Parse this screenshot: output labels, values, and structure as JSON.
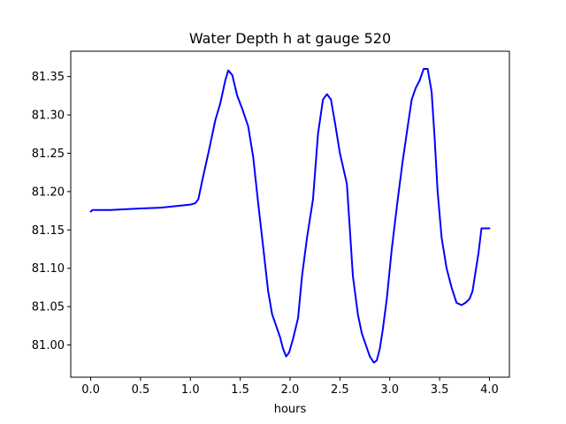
{
  "chart_data": {
    "type": "line",
    "title": "Water Depth h at gauge 520",
    "xlabel": "hours",
    "ylabel": "",
    "xlim": [
      -0.2,
      4.2
    ],
    "ylim": [
      80.958,
      81.383
    ],
    "grid": false,
    "x_ticks": [
      0.0,
      0.5,
      1.0,
      1.5,
      2.0,
      2.5,
      3.0,
      3.5,
      4.0
    ],
    "x_tick_labels": [
      "0.0",
      "0.5",
      "1.0",
      "1.5",
      "2.0",
      "2.5",
      "3.0",
      "3.5",
      "4.0"
    ],
    "y_ticks": [
      81.0,
      81.05,
      81.1,
      81.15,
      81.2,
      81.25,
      81.3,
      81.35
    ],
    "y_tick_labels": [
      "81.00",
      "81.05",
      "81.10",
      "81.15",
      "81.20",
      "81.25",
      "81.30",
      "81.35"
    ],
    "series": [
      {
        "color": "#0000ff",
        "x": [
          0.0,
          0.02,
          0.2,
          0.5,
          0.7,
          0.85,
          1.0,
          1.05,
          1.08,
          1.12,
          1.18,
          1.25,
          1.3,
          1.35,
          1.38,
          1.42,
          1.47,
          1.52,
          1.58,
          1.63,
          1.68,
          1.73,
          1.78,
          1.82,
          1.86,
          1.9,
          1.93,
          1.96,
          1.99,
          2.03,
          2.08,
          2.12,
          2.17,
          2.23,
          2.28,
          2.33,
          2.37,
          2.41,
          2.45,
          2.5,
          2.57,
          2.6,
          2.63,
          2.68,
          2.72,
          2.76,
          2.8,
          2.84,
          2.87,
          2.9,
          2.93,
          2.97,
          3.02,
          3.08,
          3.13,
          3.18,
          3.22,
          3.26,
          3.3,
          3.34,
          3.38,
          3.42,
          3.45,
          3.48,
          3.52,
          3.57,
          3.62,
          3.67,
          3.72,
          3.76,
          3.8,
          3.83,
          3.86,
          3.89,
          3.92,
          3.95,
          3.98,
          4.0
        ],
        "y": [
          81.174,
          81.176,
          81.176,
          81.178,
          81.179,
          81.181,
          81.183,
          81.185,
          81.19,
          81.215,
          81.25,
          81.293,
          81.315,
          81.345,
          81.358,
          81.352,
          81.325,
          81.308,
          81.285,
          81.245,
          81.185,
          81.128,
          81.07,
          81.04,
          81.025,
          81.01,
          80.995,
          80.985,
          80.99,
          81.008,
          81.035,
          81.09,
          81.14,
          81.19,
          81.275,
          81.32,
          81.327,
          81.32,
          81.29,
          81.25,
          81.21,
          81.15,
          81.09,
          81.04,
          81.015,
          81.0,
          80.985,
          80.977,
          80.98,
          80.995,
          81.02,
          81.06,
          81.125,
          81.19,
          81.24,
          81.285,
          81.32,
          81.335,
          81.345,
          81.36,
          81.36,
          81.33,
          81.27,
          81.2,
          81.14,
          81.1,
          81.075,
          81.055,
          81.052,
          81.055,
          81.06,
          81.07,
          81.095,
          81.12,
          81.152,
          81.152,
          81.152,
          81.152
        ]
      }
    ]
  }
}
